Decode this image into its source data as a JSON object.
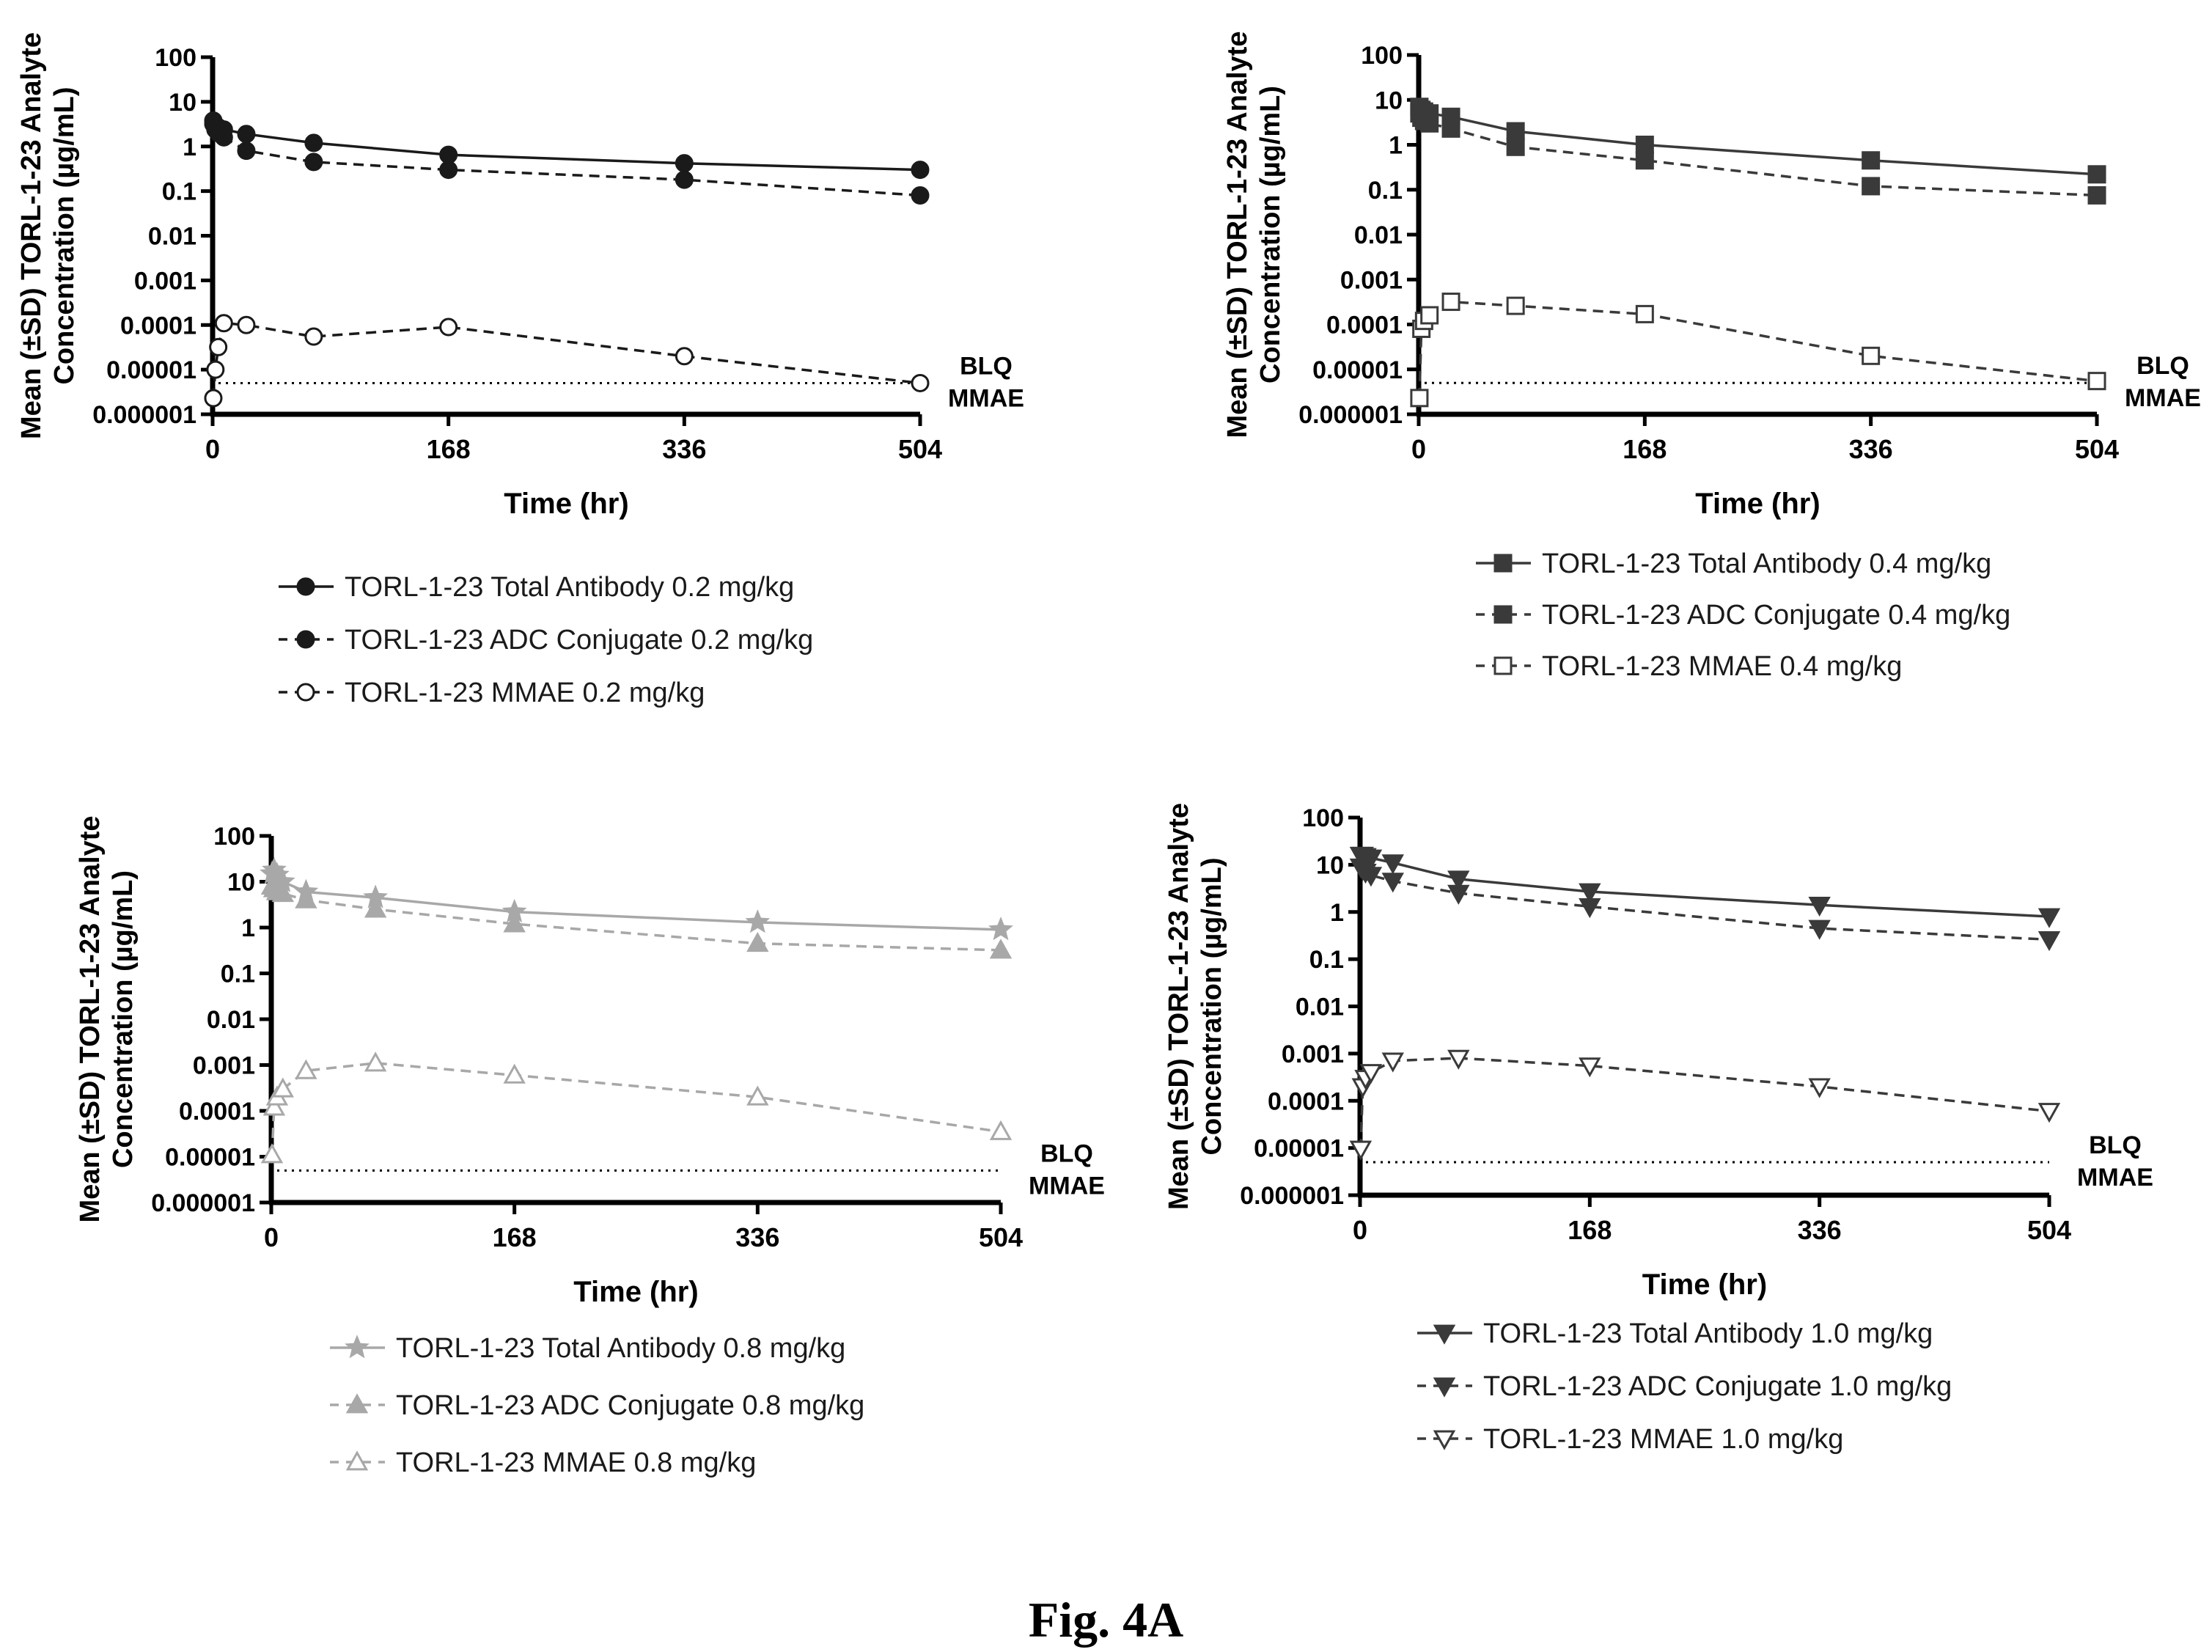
{
  "figure": {
    "caption": "Fig. 4A"
  },
  "chart_data": [
    {
      "type": "line",
      "panel": "top-left",
      "ylabel_line1": "Mean (±SD) TORL-1-23 Analyte",
      "ylabel_line2": "Concentration (µg/mL)",
      "xlabel": "Time (hr)",
      "y_scale": "log",
      "ylim": [
        1e-06,
        100
      ],
      "xlim": [
        0,
        504
      ],
      "x_ticks": [
        0,
        168,
        336,
        504
      ],
      "y_ticks": [
        "0.000001",
        "0.00001",
        "0.0001",
        "0.001",
        "0.01",
        "0.1",
        "1",
        "10",
        "100"
      ],
      "blq": {
        "value": 5e-06,
        "label_line1": "BLQ",
        "label_line2": "MMAE"
      },
      "legend_position": "bottom",
      "series": [
        {
          "name": "TORL-1-23 Total Antibody 0.2 mg/kg",
          "color": "#1a1a1a",
          "line": "solid",
          "marker": "circle",
          "filled": true,
          "x": [
            0.5,
            2,
            4,
            8,
            24,
            72,
            168,
            336,
            504
          ],
          "y": [
            3.8,
            3.0,
            2.7,
            2.4,
            1.9,
            1.2,
            0.65,
            0.42,
            0.3
          ]
        },
        {
          "name": "TORL-1-23 ADC Conjugate 0.2 mg/kg",
          "color": "#1a1a1a",
          "line": "dashed",
          "marker": "circle",
          "filled": true,
          "x": [
            0.5,
            2,
            4,
            8,
            24,
            72,
            168,
            336,
            504
          ],
          "y": [
            3.2,
            2.4,
            2.0,
            1.6,
            0.8,
            0.45,
            0.3,
            0.18,
            0.08
          ]
        },
        {
          "name": "TORL-1-23 MMAE 0.2 mg/kg",
          "color": "#1a1a1a",
          "line": "dashed",
          "marker": "circle",
          "filled": false,
          "x": [
            0.5,
            2,
            4,
            8,
            24,
            72,
            168,
            336,
            504
          ],
          "y": [
            2.3e-06,
            1e-05,
            3.2e-05,
            0.00011,
            0.0001,
            5.5e-05,
            9e-05,
            2e-05,
            5e-06
          ]
        }
      ]
    },
    {
      "type": "line",
      "panel": "top-right",
      "ylabel_line1": "Mean (±SD) TORL-1-23 Analyte",
      "ylabel_line2": "Concentration (µg/mL)",
      "xlabel": "Time (hr)",
      "y_scale": "log",
      "ylim": [
        1e-06,
        100
      ],
      "xlim": [
        0,
        504
      ],
      "x_ticks": [
        0,
        168,
        336,
        504
      ],
      "y_ticks": [
        "0.000001",
        "0.00001",
        "0.0001",
        "0.001",
        "0.01",
        "0.1",
        "1",
        "10",
        "100"
      ],
      "blq": {
        "value": 5e-06,
        "label_line1": "BLQ",
        "label_line2": "MMAE"
      },
      "legend_position": "bottom",
      "series": [
        {
          "name": "TORL-1-23 Total Antibody 0.4 mg/kg",
          "color": "#3a3a3a",
          "line": "solid",
          "marker": "square",
          "filled": true,
          "x": [
            0.5,
            2,
            4,
            8,
            24,
            72,
            168,
            336,
            504
          ],
          "y": [
            7.0,
            6.0,
            5.5,
            5.0,
            4.2,
            2.0,
            1.0,
            0.45,
            0.22
          ]
        },
        {
          "name": "TORL-1-23 ADC Conjugate 0.4 mg/kg",
          "color": "#3a3a3a",
          "line": "dashed",
          "marker": "square",
          "filled": true,
          "x": [
            0.5,
            2,
            4,
            8,
            24,
            72,
            168,
            336,
            504
          ],
          "y": [
            5.0,
            4.0,
            3.4,
            3.0,
            2.3,
            0.9,
            0.45,
            0.12,
            0.075
          ]
        },
        {
          "name": "TORL-1-23 MMAE 0.4 mg/kg",
          "color": "#3a3a3a",
          "line": "dashed",
          "marker": "square",
          "filled": false,
          "x": [
            0.5,
            2,
            4,
            8,
            24,
            72,
            168,
            336,
            504
          ],
          "y": [
            2.3e-06,
            8e-05,
            0.00012,
            0.00016,
            0.00032,
            0.00026,
            0.00017,
            2e-05,
            5.5e-06
          ]
        }
      ]
    },
    {
      "type": "line",
      "panel": "bottom-left",
      "ylabel_line1": "Mean (±SD) TORL-1-23 Analyte",
      "ylabel_line2": "Concentration (µg/mL)",
      "xlabel": "Time (hr)",
      "y_scale": "log",
      "ylim": [
        1e-06,
        100
      ],
      "xlim": [
        0,
        504
      ],
      "x_ticks": [
        0,
        168,
        336,
        504
      ],
      "y_ticks": [
        "0.000001",
        "0.00001",
        "0.0001",
        "0.001",
        "0.01",
        "0.1",
        "1",
        "10",
        "100"
      ],
      "blq": {
        "value": 5e-06,
        "label_line1": "BLQ",
        "label_line2": "MMAE"
      },
      "legend_position": "bottom",
      "series": [
        {
          "name": "TORL-1-23 Total Antibody 0.8 mg/kg",
          "color": "#a8a8a8",
          "line": "solid",
          "marker": "star",
          "filled": true,
          "x": [
            0.5,
            2,
            4,
            8,
            24,
            72,
            168,
            336,
            504
          ],
          "y": [
            15,
            18,
            14,
            10,
            6,
            4.5,
            2.2,
            1.3,
            0.9
          ]
        },
        {
          "name": "TORL-1-23 ADC Conjugate 0.8 mg/kg",
          "color": "#a8a8a8",
          "line": "dashed",
          "marker": "triangle-up",
          "filled": true,
          "x": [
            0.5,
            2,
            4,
            8,
            24,
            72,
            168,
            336,
            504
          ],
          "y": [
            8,
            7,
            6,
            5.5,
            4,
            2.5,
            1.2,
            0.45,
            0.32
          ]
        },
        {
          "name": "TORL-1-23 MMAE 0.8 mg/kg",
          "color": "#a8a8a8",
          "line": "dashed",
          "marker": "triangle-up",
          "filled": false,
          "x": [
            0.5,
            2,
            4,
            8,
            24,
            72,
            168,
            336,
            504
          ],
          "y": [
            1.1e-05,
            0.00012,
            0.0002,
            0.0003,
            0.00075,
            0.0011,
            0.0006,
            0.0002,
            3.5e-05
          ]
        }
      ]
    },
    {
      "type": "line",
      "panel": "bottom-right",
      "ylabel_line1": "Mean (±SD) TORL-1-23 Analyte",
      "ylabel_line2": "Concentration (µg/mL)",
      "xlabel": "Time (hr)",
      "y_scale": "log",
      "ylim": [
        1e-06,
        100
      ],
      "xlim": [
        0,
        504
      ],
      "x_ticks": [
        0,
        168,
        336,
        504
      ],
      "y_ticks": [
        "0.000001",
        "0.00001",
        "0.0001",
        "0.001",
        "0.01",
        "0.1",
        "1",
        "10",
        "100"
      ],
      "blq": {
        "value": 5e-06,
        "label_line1": "BLQ",
        "label_line2": "MMAE"
      },
      "legend_position": "bottom",
      "series": [
        {
          "name": "TORL-1-23 Total Antibody 1.0 mg/kg",
          "color": "#3a3a3a",
          "line": "solid",
          "marker": "triangle-down",
          "filled": true,
          "x": [
            0.5,
            2,
            4,
            8,
            24,
            72,
            168,
            336,
            504
          ],
          "y": [
            16,
            16,
            15,
            14,
            11,
            5,
            2.7,
            1.4,
            0.8
          ]
        },
        {
          "name": "TORL-1-23 ADC Conjugate 1.0 mg/kg",
          "color": "#3a3a3a",
          "line": "dashed",
          "marker": "triangle-down",
          "filled": true,
          "x": [
            0.5,
            2,
            4,
            8,
            24,
            72,
            168,
            336,
            504
          ],
          "y": [
            9,
            8,
            7,
            6,
            4.5,
            2.5,
            1.3,
            0.45,
            0.26
          ]
        },
        {
          "name": "TORL-1-23 MMAE 1.0 mg/kg",
          "color": "#3a3a3a",
          "line": "dashed",
          "marker": "triangle-down",
          "filled": false,
          "x": [
            0.5,
            2,
            4,
            8,
            24,
            72,
            168,
            336,
            504
          ],
          "y": [
            9.5e-06,
            0.0002,
            0.0003,
            0.0004,
            0.0007,
            0.0008,
            0.00055,
            0.0002,
            6e-05
          ]
        }
      ]
    }
  ]
}
